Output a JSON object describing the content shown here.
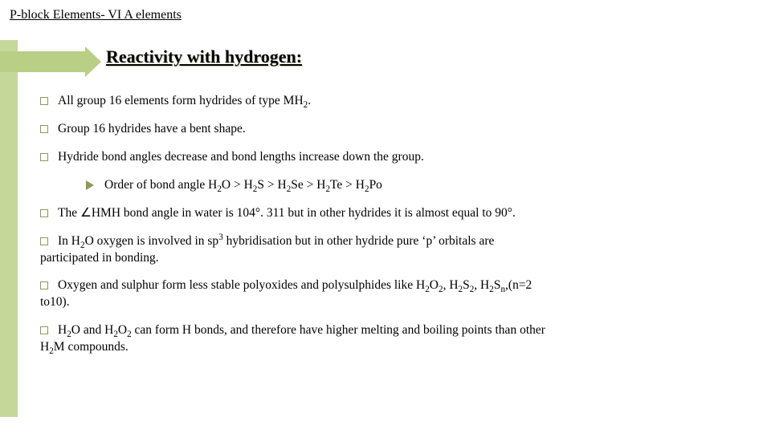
{
  "header": "P-block Elements- VI A  elements",
  "section_title": "Reactivity with hydrogen:",
  "bullets": {
    "b1": "All group 16 elements form hydrides of type MH",
    "b1_sub": "2",
    "b1_tail": ".",
    "b2": "Group 16 hydrides have a bent shape.",
    "b3": "Hydride bond angles decrease and bond lengths increase down the group.",
    "sub1_pre": "Order of bond angle H",
    "b4_pre": "The ∠HMH bond angle in water is 104°. 311 but in other hydrides it is almost equal to 90°.",
    "b5_a": " In H",
    "b5_b": "O oxygen is involved in sp",
    "b5_c": " hybridisation but in other hydride pure ‘p’ orbitals are",
    "b5_rest": "participated in bonding.",
    "b6_a": " Oxygen and sulphur form less stable polyoxides and polysulphides like H",
    "b6_rest": "to10).",
    "b7_a": "H",
    "b7_b": "O and H",
    "b7_c": " can form H bonds, and therefore have higher melting and boiling points than other",
    "b7_rest_a": "H",
    "b7_rest_b": "M compounds."
  },
  "chem": {
    "two": "2",
    "three": "3",
    "n": "n"
  },
  "style": {
    "accent_color": "#b8cf85",
    "sidebar_color": "#c5d89a",
    "bullet_border": "#8a9a5b",
    "background": "#ffffff",
    "header_fontsize": 16,
    "title_fontsize": 22,
    "body_fontsize": 15.5
  }
}
